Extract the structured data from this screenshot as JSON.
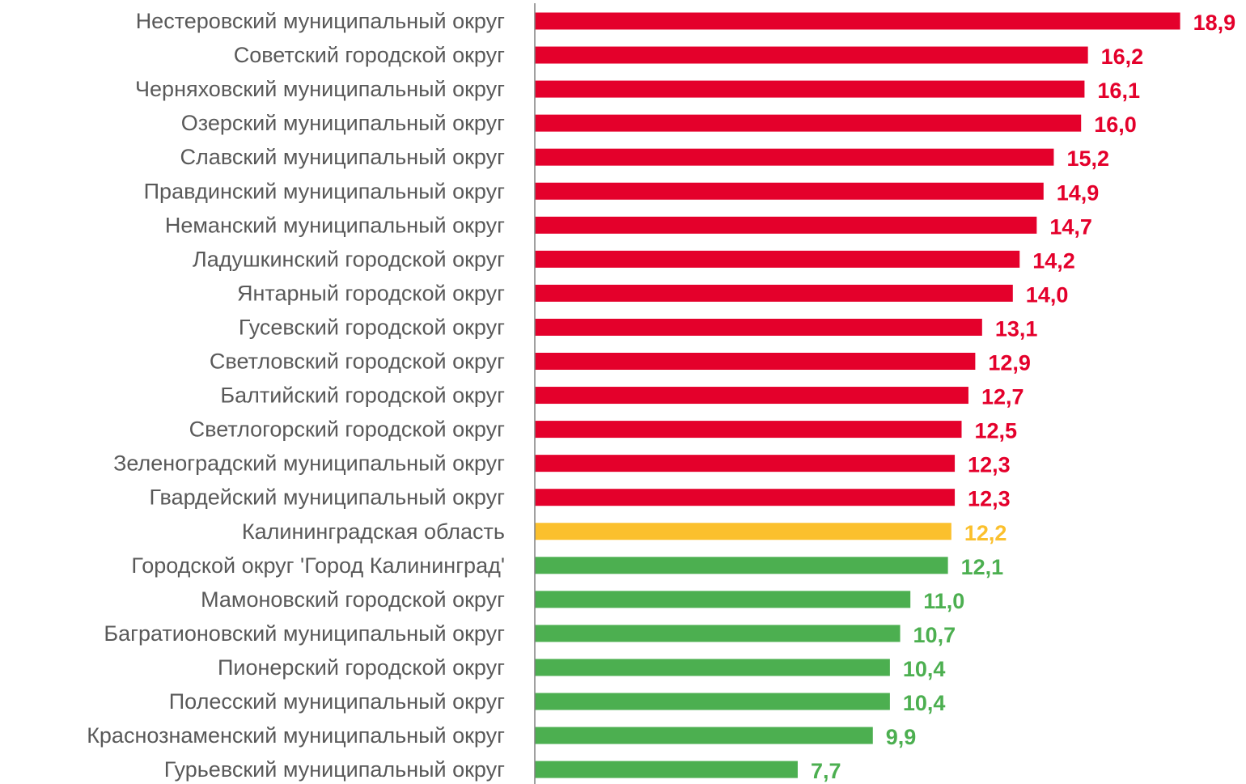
{
  "chart_data": {
    "type": "bar",
    "orientation": "horizontal",
    "title": "",
    "xlabel": "",
    "ylabel": "",
    "grid": false,
    "legend": "none",
    "decimal_separator": ",",
    "colors": {
      "above": "#E4002B",
      "region": "#FBC02D",
      "below": "#4CAF50",
      "axis": "#808080",
      "category_text": "#595959"
    },
    "categories": [
      "Нестеровский муниципальный округ",
      "Советский городской округ",
      "Черняховский муниципальный округ",
      "Озерский муниципальный округ",
      "Славский муниципальный округ",
      "Правдинский муниципальный округ",
      "Неманский муниципальный округ",
      "Ладушкинский городской округ",
      "Янтарный городской округ",
      "Гусевский городской округ",
      "Светловский городской округ",
      "Балтийский городской округ",
      "Светлогорский городской округ",
      "Зеленоградский муниципальный округ",
      "Гвардейский муниципальный округ",
      "Калининградская область",
      "Городской округ 'Город Калининград'",
      "Мамоновский городской округ",
      "Багратионовский муниципальный округ",
      "Пионерский городской округ",
      "Полесский муниципальный округ",
      "Краснознаменский муниципальный округ",
      "Гурьевский муниципальный округ"
    ],
    "values": [
      18.9,
      16.2,
      16.1,
      16.0,
      15.2,
      14.9,
      14.7,
      14.2,
      14.0,
      13.1,
      12.9,
      12.7,
      12.5,
      12.3,
      12.3,
      12.2,
      12.1,
      11.0,
      10.7,
      10.4,
      10.4,
      9.9,
      7.7
    ],
    "value_labels": [
      "18,9",
      "16,2",
      "16,1",
      "16,0",
      "15,2",
      "14,9",
      "14,7",
      "14,2",
      "14,0",
      "13,1",
      "12,9",
      "12,7",
      "12,5",
      "12,3",
      "12,3",
      "12,2",
      "12,1",
      "11,0",
      "10,7",
      "10,4",
      "10,4",
      "9,9",
      "7,7"
    ],
    "color_groups": [
      "above",
      "above",
      "above",
      "above",
      "above",
      "above",
      "above",
      "above",
      "above",
      "above",
      "above",
      "above",
      "above",
      "above",
      "above",
      "region",
      "below",
      "below",
      "below",
      "below",
      "below",
      "below",
      "below"
    ]
  }
}
